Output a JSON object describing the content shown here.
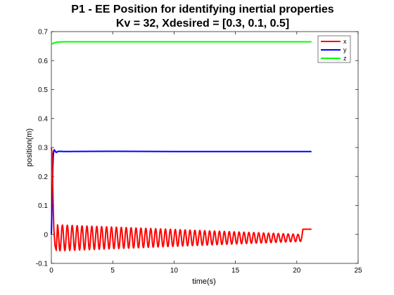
{
  "chart_data": {
    "type": "line",
    "title": "P1 - EE Position for identifying inertial properties",
    "subtitle": "Kv = 32, Xdesired = [0.3, 0.1, 0.5]",
    "xlabel": "time(s)",
    "ylabel": "position(m)",
    "xlim": [
      0,
      25
    ],
    "ylim": [
      -0.1,
      0.7
    ],
    "xticks": [
      0,
      5,
      10,
      15,
      20,
      25
    ],
    "yticks": [
      -0.1,
      0,
      0.1,
      0.2,
      0.3,
      0.4,
      0.5,
      0.6,
      0.7
    ],
    "grid": false,
    "legend_position": "top-right",
    "series": [
      {
        "name": "x",
        "color": "#ff0000",
        "x": [
          0,
          0.05,
          0.1,
          0.15,
          0.2,
          0.3,
          0.4,
          0.5,
          0.6,
          0.7,
          0.85,
          1.0,
          1.5,
          2.0,
          3.0,
          5.0,
          10.0,
          15.0,
          20.3,
          20.5,
          21.2
        ],
        "y": [
          0.3,
          0.28,
          0.2,
          0.1,
          0.02,
          -0.04,
          -0.055,
          -0.04,
          -0.01,
          0.02,
          0.035,
          0.025,
          0.034,
          0.034,
          0.033,
          0.032,
          0.028,
          0.025,
          0.02,
          0.018,
          0.018
        ],
        "oscillation": {
          "center": -0.012,
          "amplitude_start": 0.045,
          "amplitude_end": 0.012,
          "period_s": 0.4,
          "start_s": 0.5,
          "end_s": 20.4
        }
      },
      {
        "name": "y",
        "color": "#0000ff",
        "x": [
          0,
          0.05,
          0.1,
          0.15,
          0.2,
          0.25,
          0.3,
          0.35,
          0.4,
          0.5,
          0.7,
          1.0,
          5.0,
          10.0,
          15.0,
          20.0,
          21.2
        ],
        "y": [
          0,
          0.1,
          0.2,
          0.27,
          0.29,
          0.292,
          0.288,
          0.285,
          0.283,
          0.286,
          0.287,
          0.286,
          0.287,
          0.286,
          0.286,
          0.286,
          0.286
        ]
      },
      {
        "name": "z",
        "color": "#00ff00",
        "x": [
          0,
          0.1,
          0.3,
          0.5,
          1.0,
          5.0,
          10.0,
          15.0,
          20.0,
          21.2
        ],
        "y": [
          0.66,
          0.658,
          0.662,
          0.664,
          0.665,
          0.665,
          0.665,
          0.665,
          0.665,
          0.665
        ]
      }
    ]
  }
}
